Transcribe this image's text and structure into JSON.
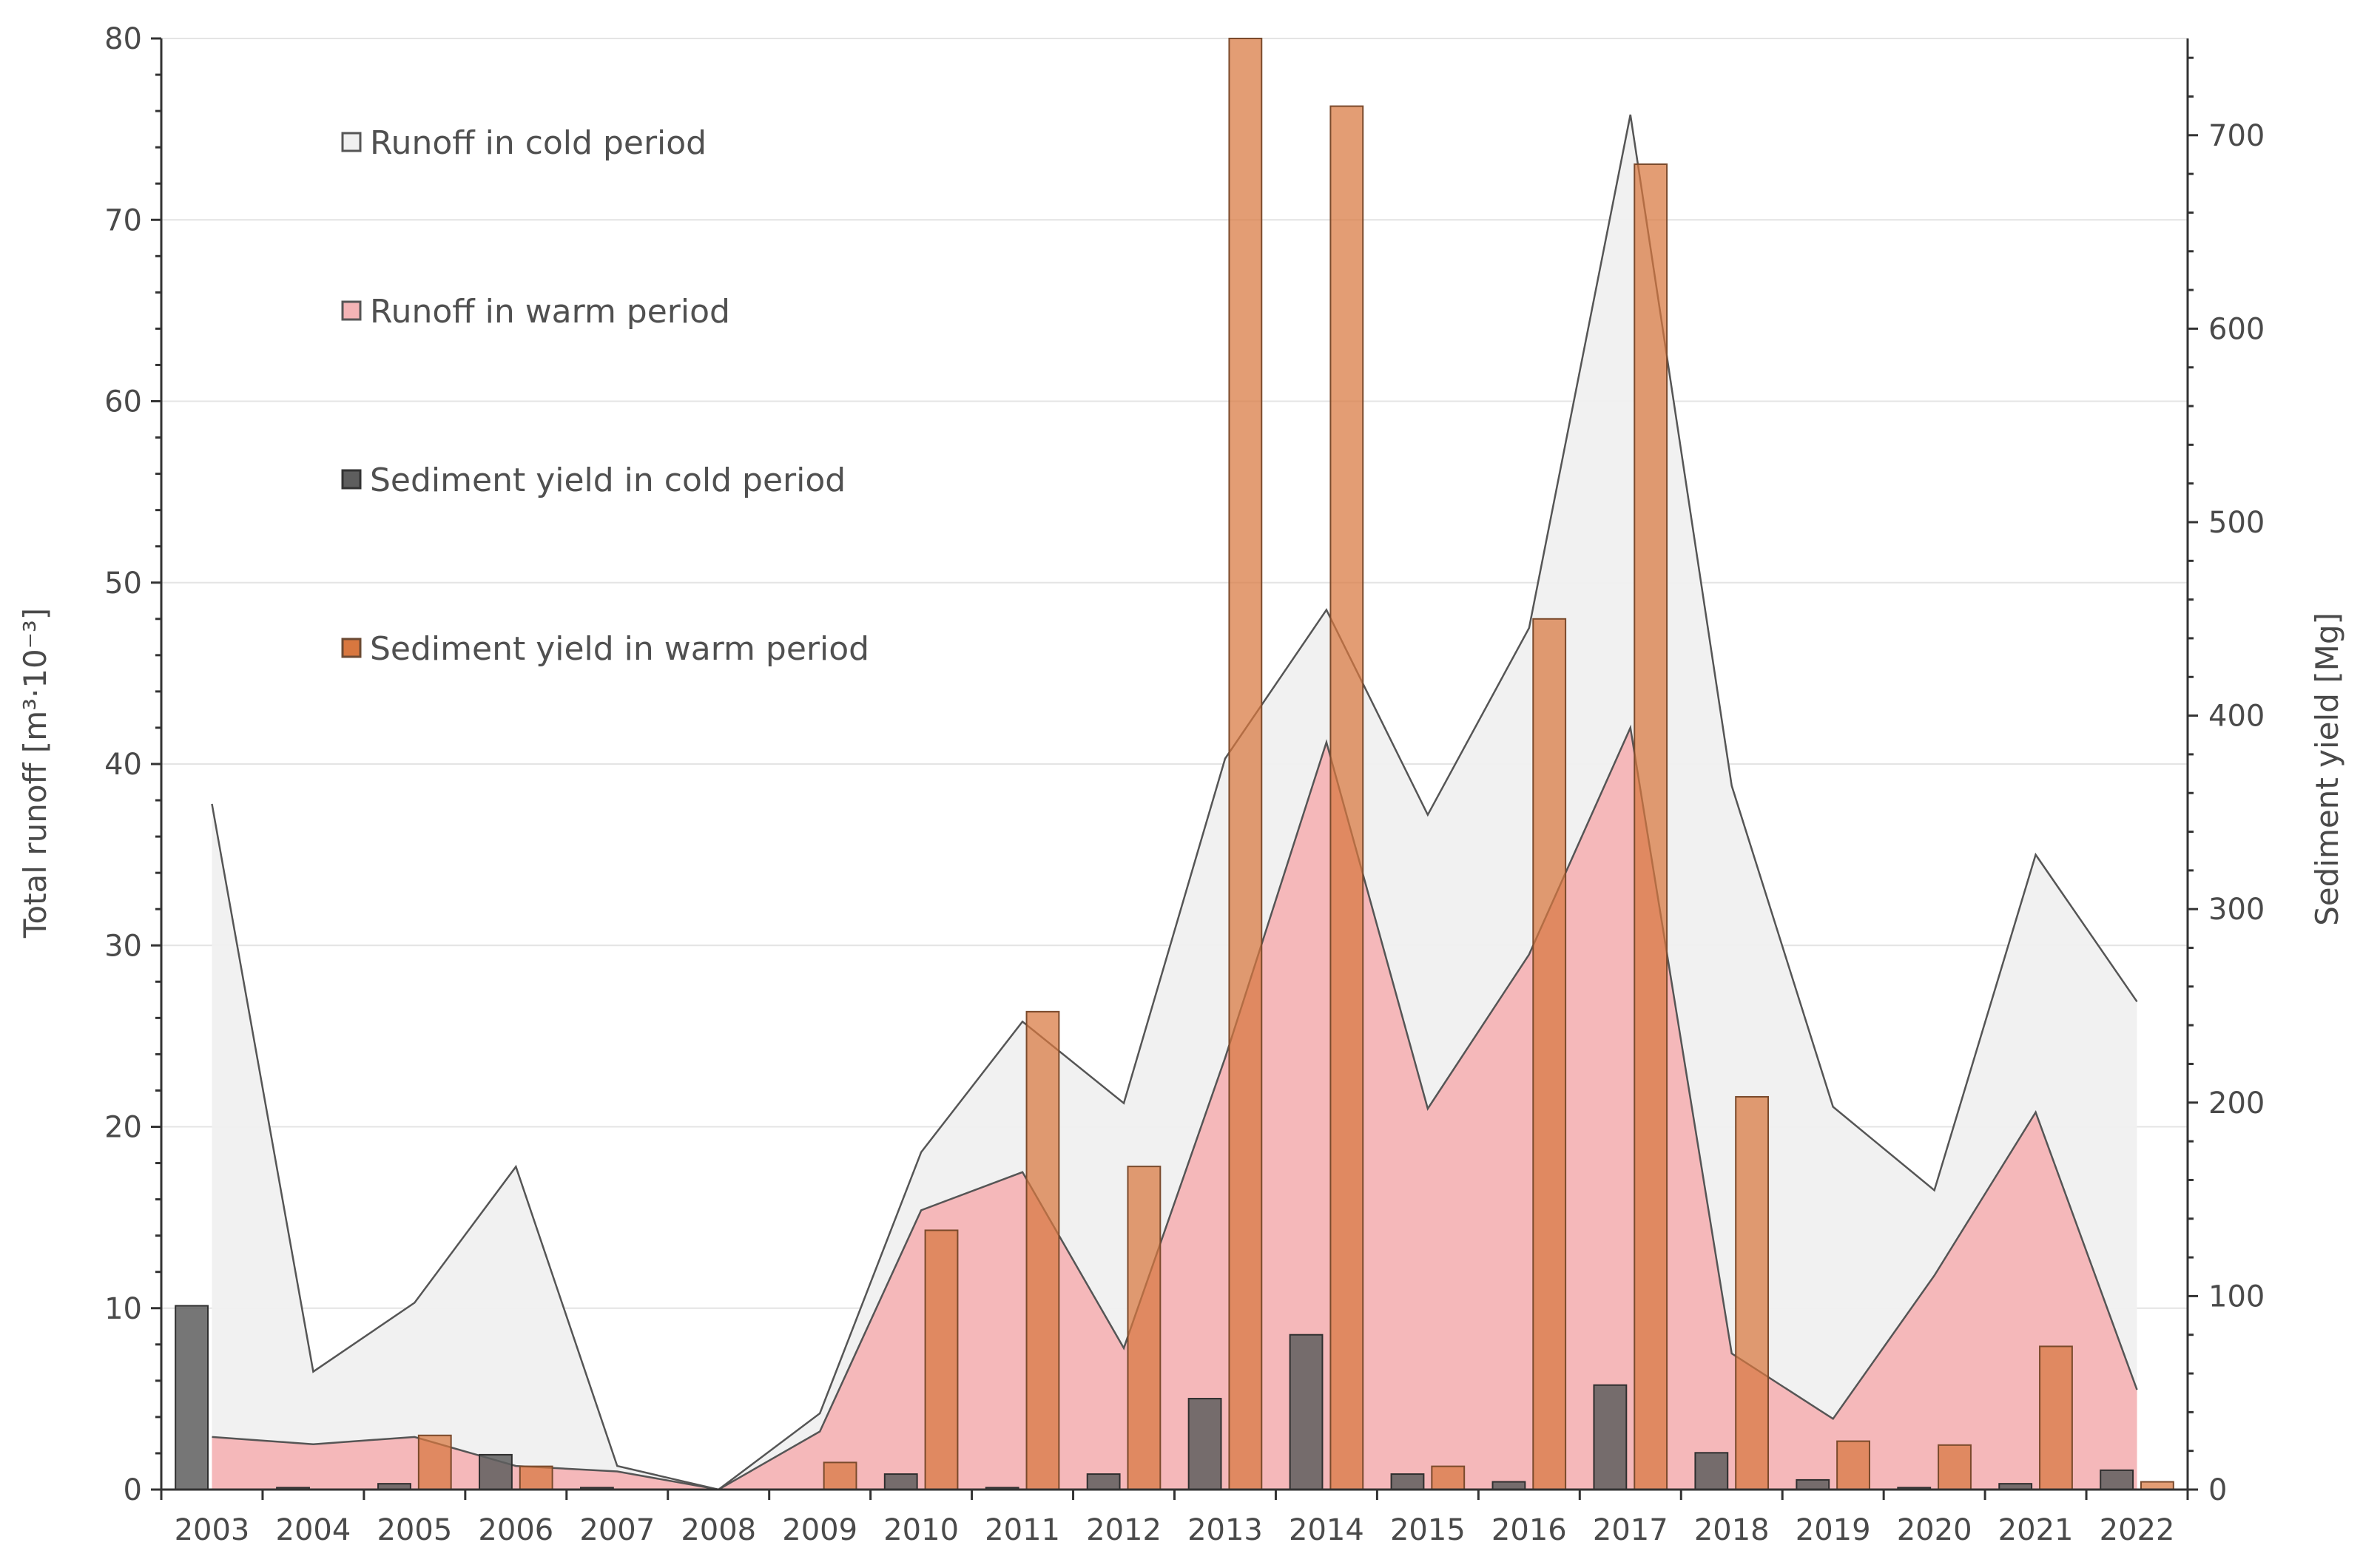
{
  "chart_data": {
    "type": "bar",
    "title": "",
    "xlabel": "",
    "ylabel": "Total runoff  [m³·10⁻³]",
    "y2label": "Sediment yield [Mg]",
    "ylim": [
      0,
      80
    ],
    "y2lim": [
      0,
      750
    ],
    "yticks": [
      "0",
      "10",
      "20",
      "30",
      "40",
      "50",
      "60",
      "70",
      "80"
    ],
    "y2ticks": [
      "0",
      "100",
      "200",
      "300",
      "400",
      "500",
      "600",
      "700"
    ],
    "grid": true,
    "legend_position": "top-left",
    "categories": [
      "2003",
      "2004",
      "2005",
      "2006",
      "2007",
      "2008",
      "2009",
      "2010",
      "2011",
      "2012",
      "2013",
      "2014",
      "2015",
      "2016",
      "2017",
      "2018",
      "2019",
      "2020",
      "2021",
      "2022"
    ],
    "series": [
      {
        "name": "Runoff in cold period",
        "kind": "area",
        "axis": "left",
        "color": "#f0f0f0",
        "values": [
          37.8,
          6.5,
          10.3,
          17.8,
          1.3,
          0.0,
          4.2,
          18.6,
          25.8,
          21.3,
          40.3,
          48.5,
          37.2,
          47.5,
          75.8,
          38.8,
          21.1,
          16.5,
          35.0,
          26.9
        ]
      },
      {
        "name": "Runoff in warm period",
        "kind": "area",
        "axis": "left",
        "color": "#f4b4b6",
        "values": [
          2.9,
          2.5,
          2.9,
          1.3,
          1.0,
          0.0,
          3.2,
          15.4,
          17.5,
          7.8,
          23.8,
          41.2,
          21.0,
          29.5,
          42.0,
          7.5,
          3.9,
          11.8,
          20.8,
          5.5
        ]
      },
      {
        "name": "Sediment yield in cold period",
        "kind": "bar",
        "axis": "right",
        "color": "#5e5e5e",
        "values": [
          95,
          1,
          3,
          18,
          1,
          0,
          0,
          8,
          1,
          8,
          47,
          80,
          8,
          4,
          54,
          19,
          5,
          1,
          3,
          10
        ]
      },
      {
        "name": "Sediment yield in warm period",
        "kind": "bar",
        "axis": "right",
        "color": "#d8773f",
        "values": [
          0,
          0,
          28,
          12,
          0,
          0,
          14,
          134,
          247,
          167,
          750,
          715,
          12,
          450,
          685,
          203,
          25,
          23,
          74,
          4
        ]
      }
    ]
  }
}
